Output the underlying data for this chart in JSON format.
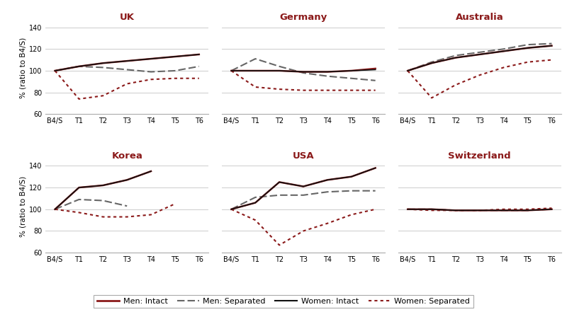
{
  "x_labels": [
    "B4/S",
    "T1",
    "T2",
    "T3",
    "T4",
    "T5",
    "T6"
  ],
  "countries": [
    "UK",
    "Germany",
    "Australia",
    "Korea",
    "USA",
    "Switzerland"
  ],
  "ylim": [
    60,
    145
  ],
  "yticks": [
    60,
    80,
    100,
    120,
    140
  ],
  "data": {
    "UK": {
      "men_intact": [
        100,
        104,
        107,
        109,
        111,
        113,
        115
      ],
      "men_sep": [
        100,
        104,
        103,
        101,
        99,
        100,
        104
      ],
      "women_intact": [
        100,
        104,
        107,
        109,
        111,
        113,
        115
      ],
      "women_sep": [
        100,
        74,
        77,
        88,
        92,
        93,
        93
      ]
    },
    "Germany": {
      "men_intact": [
        100,
        100,
        100,
        99,
        99,
        100,
        102
      ],
      "men_sep": [
        100,
        111,
        104,
        98,
        95,
        93,
        91
      ],
      "women_intact": [
        100,
        100,
        100,
        99,
        99,
        100,
        101
      ],
      "women_sep": [
        100,
        85,
        83,
        82,
        82,
        82,
        82
      ]
    },
    "Australia": {
      "men_intact": [
        100,
        107,
        112,
        115,
        118,
        121,
        123
      ],
      "men_sep": [
        100,
        108,
        114,
        117,
        120,
        124,
        125
      ],
      "women_intact": [
        100,
        107,
        112,
        115,
        118,
        121,
        123
      ],
      "women_sep": [
        100,
        75,
        87,
        96,
        103,
        108,
        110
      ]
    },
    "Korea": {
      "men_intact": [
        100,
        120,
        122,
        127,
        135,
        null,
        null
      ],
      "men_sep": [
        100,
        109,
        108,
        103,
        null,
        null,
        null
      ],
      "women_intact": [
        100,
        120,
        122,
        127,
        135,
        null,
        null
      ],
      "women_sep": [
        100,
        97,
        93,
        93,
        95,
        105,
        null
      ]
    },
    "USA": {
      "men_intact": [
        100,
        106,
        125,
        121,
        127,
        130,
        138
      ],
      "men_sep": [
        100,
        111,
        113,
        113,
        116,
        117,
        117
      ],
      "women_intact": [
        100,
        106,
        125,
        121,
        127,
        130,
        138
      ],
      "women_sep": [
        100,
        90,
        67,
        80,
        87,
        95,
        100
      ]
    },
    "Switzerland": {
      "men_intact": [
        100,
        100,
        99,
        99,
        99,
        99,
        100
      ],
      "men_sep": [
        100,
        100,
        99,
        99,
        99,
        99,
        100
      ],
      "women_intact": [
        100,
        100,
        99,
        99,
        99,
        99,
        100
      ],
      "women_sep": [
        100,
        99,
        99,
        99,
        100,
        100,
        101
      ]
    }
  },
  "colors": {
    "men_intact": "#8B1A1A",
    "men_sep": "#666666",
    "women_intact": "#111111",
    "women_sep": "#8B1A1A"
  },
  "line_widths": {
    "men_intact": 1.8,
    "men_sep": 1.5,
    "women_intact": 1.2,
    "women_sep": 1.5
  },
  "title_color": "#8B1A1A",
  "ylabel": "% (ratio to B4/S)",
  "background": "#FFFFFF",
  "grid_color": "#cccccc",
  "spine_color": "#aaaaaa",
  "tick_fontsize": 7.0,
  "title_fontsize": 9.5,
  "ylabel_fontsize": 7.5,
  "legend_fontsize": 8.0
}
